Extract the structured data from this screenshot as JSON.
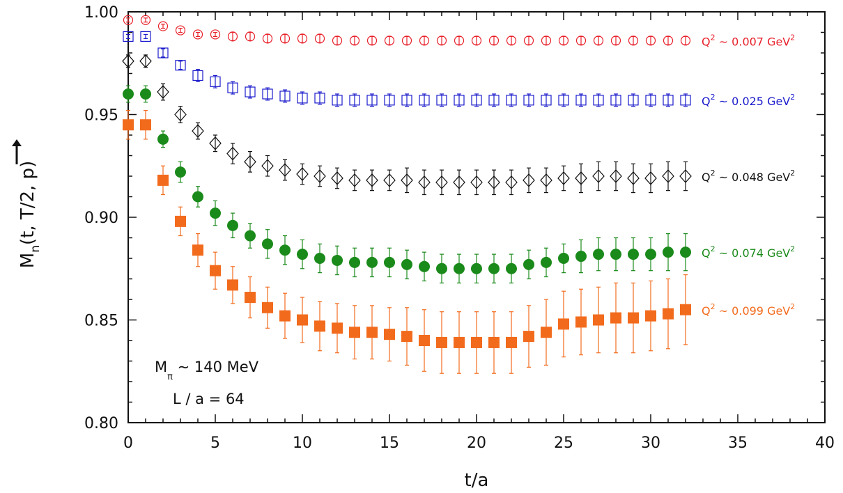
{
  "chart_data": {
    "type": "scatter",
    "title": "",
    "xlabel": "t/a",
    "ylabel": "M_n(t, T/2, p)",
    "xlim": [
      0,
      40
    ],
    "ylim": [
      0.8,
      1.0
    ],
    "xticks": [
      0,
      5,
      10,
      15,
      20,
      25,
      30,
      35,
      40
    ],
    "xtick_labels": [
      "0",
      "5",
      "10",
      "15",
      "20",
      "25",
      "30",
      "35",
      "40"
    ],
    "yticks": [
      0.8,
      0.85,
      0.9,
      0.95,
      1.0
    ],
    "ytick_labels": [
      "0.80",
      "0.85",
      "0.90",
      "0.95",
      "1.00"
    ],
    "grid": false,
    "series": [
      {
        "name": "Q² ~ 0.007 GeV²",
        "label_prefix": "Q",
        "label_sup1": "2",
        "label_mid": " ~ 0.007 GeV",
        "label_sup2": "2",
        "color": "#e8202a",
        "marker": "circle-open",
        "x": [
          0,
          1,
          2,
          3,
          4,
          5,
          6,
          7,
          8,
          9,
          10,
          11,
          12,
          13,
          14,
          15,
          16,
          17,
          18,
          19,
          20,
          21,
          22,
          23,
          24,
          25,
          26,
          27,
          28,
          29,
          30,
          31,
          32
        ],
        "y": [
          0.996,
          0.996,
          0.993,
          0.991,
          0.989,
          0.989,
          0.988,
          0.988,
          0.987,
          0.987,
          0.987,
          0.987,
          0.986,
          0.986,
          0.986,
          0.986,
          0.986,
          0.986,
          0.986,
          0.986,
          0.986,
          0.986,
          0.986,
          0.986,
          0.986,
          0.986,
          0.986,
          0.986,
          0.986,
          0.986,
          0.986,
          0.986,
          0.986
        ],
        "err": [
          0.001,
          0.001,
          0.001,
          0.001,
          0.001,
          0.001,
          0.002,
          0.002,
          0.002,
          0.002,
          0.002,
          0.002,
          0.002,
          0.002,
          0.002,
          0.002,
          0.002,
          0.002,
          0.002,
          0.002,
          0.002,
          0.002,
          0.002,
          0.002,
          0.002,
          0.002,
          0.002,
          0.002,
          0.002,
          0.002,
          0.002,
          0.002,
          0.002
        ]
      },
      {
        "name": "Q² ~ 0.025 GeV²",
        "label_prefix": "Q",
        "label_sup1": "2",
        "label_mid": " ~ 0.025 GeV",
        "label_sup2": "2",
        "color": "#1a1acc",
        "marker": "square-open",
        "x": [
          0,
          1,
          2,
          3,
          4,
          5,
          6,
          7,
          8,
          9,
          10,
          11,
          12,
          13,
          14,
          15,
          16,
          17,
          18,
          19,
          20,
          21,
          22,
          23,
          24,
          25,
          26,
          27,
          28,
          29,
          30,
          31,
          32
        ],
        "y": [
          0.988,
          0.988,
          0.98,
          0.974,
          0.969,
          0.966,
          0.963,
          0.961,
          0.96,
          0.959,
          0.958,
          0.958,
          0.957,
          0.957,
          0.957,
          0.957,
          0.957,
          0.957,
          0.957,
          0.957,
          0.957,
          0.957,
          0.957,
          0.957,
          0.957,
          0.957,
          0.957,
          0.957,
          0.957,
          0.957,
          0.957,
          0.957,
          0.957
        ],
        "err": [
          0.001,
          0.001,
          0.002,
          0.002,
          0.003,
          0.003,
          0.003,
          0.003,
          0.003,
          0.003,
          0.003,
          0.003,
          0.003,
          0.003,
          0.003,
          0.003,
          0.003,
          0.003,
          0.003,
          0.003,
          0.003,
          0.003,
          0.003,
          0.003,
          0.003,
          0.003,
          0.003,
          0.003,
          0.003,
          0.003,
          0.003,
          0.003,
          0.003
        ]
      },
      {
        "name": "Q² ~ 0.048 GeV²",
        "label_prefix": "Q",
        "label_sup1": "2",
        "label_mid": " ~ 0.048 GeV",
        "label_sup2": "2",
        "color": "#111111",
        "marker": "diamond-open",
        "x": [
          0,
          1,
          2,
          3,
          4,
          5,
          6,
          7,
          8,
          9,
          10,
          11,
          12,
          13,
          14,
          15,
          16,
          17,
          18,
          19,
          20,
          21,
          22,
          23,
          24,
          25,
          26,
          27,
          28,
          29,
          30,
          31,
          32
        ],
        "y": [
          0.976,
          0.976,
          0.961,
          0.95,
          0.942,
          0.936,
          0.931,
          0.927,
          0.925,
          0.923,
          0.921,
          0.92,
          0.919,
          0.918,
          0.918,
          0.918,
          0.918,
          0.917,
          0.917,
          0.917,
          0.917,
          0.917,
          0.917,
          0.918,
          0.918,
          0.919,
          0.919,
          0.92,
          0.92,
          0.919,
          0.919,
          0.92,
          0.92
        ],
        "err": [
          0.003,
          0.003,
          0.004,
          0.004,
          0.004,
          0.004,
          0.005,
          0.005,
          0.005,
          0.005,
          0.005,
          0.005,
          0.005,
          0.005,
          0.005,
          0.005,
          0.006,
          0.006,
          0.006,
          0.006,
          0.006,
          0.006,
          0.006,
          0.006,
          0.006,
          0.006,
          0.007,
          0.007,
          0.007,
          0.007,
          0.007,
          0.007,
          0.007
        ]
      },
      {
        "name": "Q² ~ 0.074 GeV²",
        "label_prefix": "Q",
        "label_sup1": "2",
        "label_mid": " ~ 0.074 GeV",
        "label_sup2": "2",
        "color": "#1a8a1a",
        "marker": "circle-filled",
        "x": [
          0,
          1,
          2,
          3,
          4,
          5,
          6,
          7,
          8,
          9,
          10,
          11,
          12,
          13,
          14,
          15,
          16,
          17,
          18,
          19,
          20,
          21,
          22,
          23,
          24,
          25,
          26,
          27,
          28,
          29,
          30,
          31,
          32
        ],
        "y": [
          0.96,
          0.96,
          0.938,
          0.922,
          0.91,
          0.902,
          0.896,
          0.891,
          0.887,
          0.884,
          0.882,
          0.88,
          0.879,
          0.878,
          0.878,
          0.878,
          0.877,
          0.876,
          0.875,
          0.875,
          0.875,
          0.875,
          0.875,
          0.877,
          0.878,
          0.88,
          0.881,
          0.882,
          0.882,
          0.882,
          0.882,
          0.883,
          0.883
        ],
        "err": [
          0.004,
          0.004,
          0.004,
          0.005,
          0.005,
          0.006,
          0.006,
          0.006,
          0.007,
          0.007,
          0.007,
          0.007,
          0.007,
          0.007,
          0.007,
          0.007,
          0.007,
          0.007,
          0.007,
          0.007,
          0.007,
          0.007,
          0.007,
          0.007,
          0.007,
          0.007,
          0.008,
          0.008,
          0.008,
          0.008,
          0.008,
          0.009,
          0.009
        ]
      },
      {
        "name": "Q² ~ 0.099 GeV²",
        "label_prefix": "Q",
        "label_sup1": "2",
        "label_mid": " ~ 0.099 GeV",
        "label_sup2": "2",
        "color": "#f26b1d",
        "marker": "square-filled",
        "x": [
          0,
          1,
          2,
          3,
          4,
          5,
          6,
          7,
          8,
          9,
          10,
          11,
          12,
          13,
          14,
          15,
          16,
          17,
          18,
          19,
          20,
          21,
          22,
          23,
          24,
          25,
          26,
          27,
          28,
          29,
          30,
          31,
          32
        ],
        "y": [
          0.945,
          0.945,
          0.918,
          0.898,
          0.884,
          0.874,
          0.867,
          0.861,
          0.856,
          0.852,
          0.85,
          0.847,
          0.846,
          0.844,
          0.844,
          0.843,
          0.842,
          0.84,
          0.839,
          0.839,
          0.839,
          0.839,
          0.839,
          0.842,
          0.844,
          0.848,
          0.849,
          0.85,
          0.851,
          0.851,
          0.852,
          0.853,
          0.855
        ],
        "err": [
          0.007,
          0.007,
          0.007,
          0.007,
          0.008,
          0.009,
          0.009,
          0.01,
          0.01,
          0.011,
          0.011,
          0.012,
          0.012,
          0.013,
          0.013,
          0.013,
          0.014,
          0.015,
          0.015,
          0.015,
          0.015,
          0.015,
          0.015,
          0.015,
          0.016,
          0.016,
          0.016,
          0.016,
          0.017,
          0.017,
          0.017,
          0.017,
          0.017
        ]
      }
    ],
    "annotations": {
      "mpi_base": "M",
      "mpi_sub": "π",
      "mpi_rest": " ~ 140 MeV",
      "lattice": "L / a = 64"
    }
  }
}
